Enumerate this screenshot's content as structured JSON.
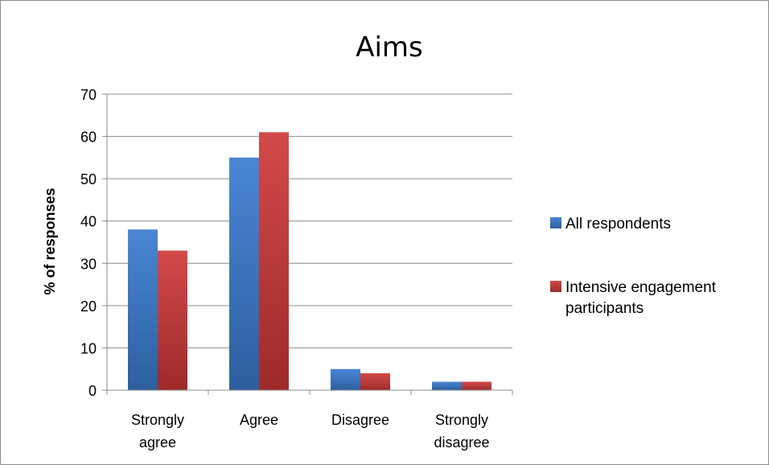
{
  "chart_data": {
    "type": "bar",
    "title": "Aims",
    "xlabel": "",
    "ylabel": "% of responses",
    "ylim": [
      0,
      70
    ],
    "yticks": [
      0,
      10,
      20,
      30,
      40,
      50,
      60,
      70
    ],
    "grid": true,
    "legend_position": "right",
    "categories": [
      [
        "Strongly",
        "agree"
      ],
      [
        "Agree"
      ],
      [
        "Disagree"
      ],
      [
        "Strongly",
        "disagree"
      ]
    ],
    "series": [
      {
        "name": "All respondents",
        "legend_lines": [
          "All respondents"
        ],
        "color": "#3f77c4",
        "values": [
          38,
          55,
          5,
          2
        ]
      },
      {
        "name": "Intensive engagement participants",
        "legend_lines": [
          "Intensive engagement",
          "participants"
        ],
        "color": "#c0393a",
        "values": [
          33,
          61,
          4,
          2
        ]
      }
    ]
  }
}
